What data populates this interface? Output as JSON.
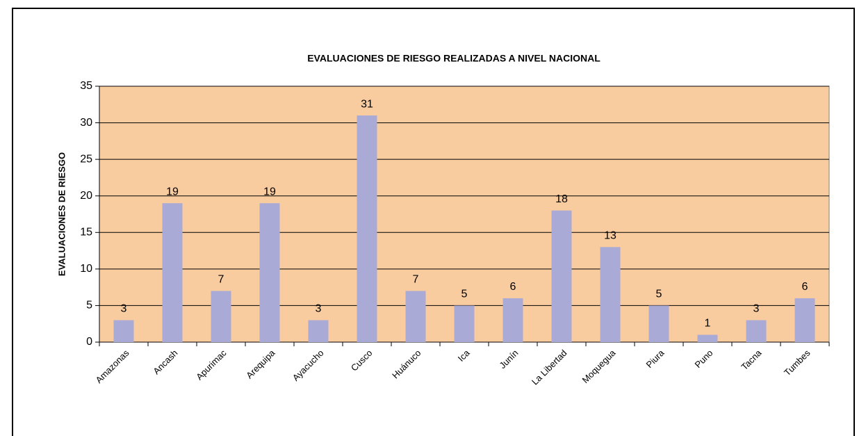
{
  "chart_data": {
    "type": "bar",
    "title": "EVALUACIONES DE RIESGO REALIZADAS A NIVEL NACIONAL",
    "y_label": "EVALUACIONES DE RIESGO",
    "categories": [
      "Amazonas",
      "Ancash",
      "Apurimac",
      "Arequipa",
      "Ayacucho",
      "Cusco",
      "Huánuco",
      "Ica",
      "Junín",
      "La Libertad",
      "Moquegua",
      "Piura",
      "Puno",
      "Tacna",
      "Tumbes"
    ],
    "values": [
      3,
      19,
      7,
      19,
      3,
      31,
      7,
      5,
      6,
      18,
      13,
      5,
      1,
      3,
      6
    ],
    "color": "#a9abd6",
    "plot_background": "#f9cca0",
    "ylim": [
      0,
      35
    ],
    "yticks": [
      0,
      5,
      10,
      15,
      20,
      25,
      30,
      35
    ],
    "grid": true
  }
}
